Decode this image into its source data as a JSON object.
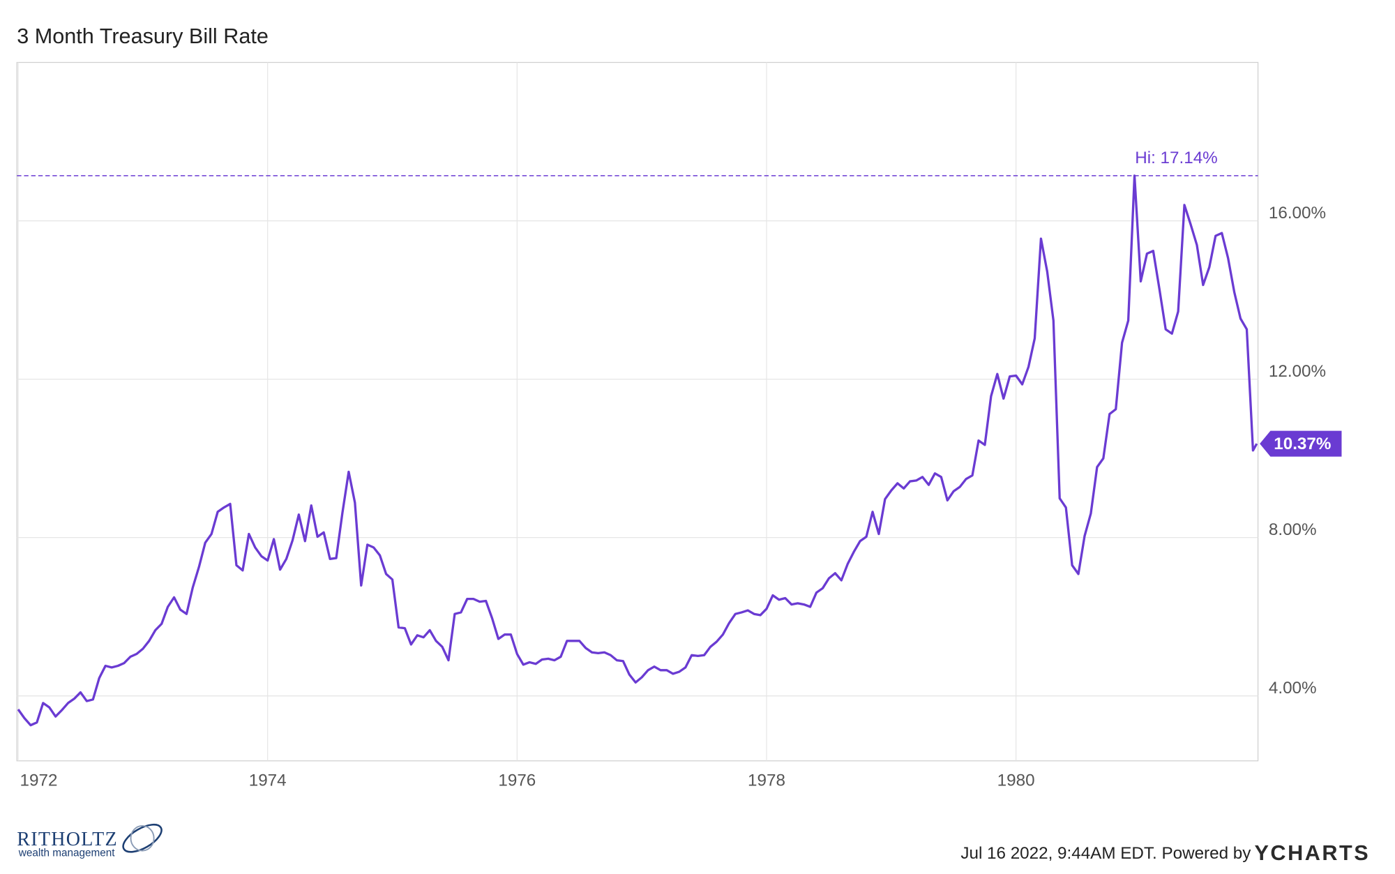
{
  "chart_data": {
    "type": "line",
    "title": "3 Month Treasury Bill Rate",
    "x": [
      1972,
      1972.05,
      1972.1,
      1972.15,
      1972.2,
      1972.25,
      1972.3,
      1972.35,
      1972.4,
      1972.45,
      1972.5,
      1972.55,
      1972.6,
      1972.65,
      1972.7,
      1972.75,
      1972.8,
      1972.85,
      1972.9,
      1972.95,
      1973,
      1973.05,
      1973.1,
      1973.15,
      1973.2,
      1973.25,
      1973.3,
      1973.35,
      1973.4,
      1973.45,
      1973.5,
      1973.55,
      1973.6,
      1973.65,
      1973.7,
      1973.75,
      1973.8,
      1973.85,
      1973.9,
      1973.95,
      1974,
      1974.05,
      1974.1,
      1974.15,
      1974.2,
      1974.25,
      1974.3,
      1974.35,
      1974.4,
      1974.45,
      1974.5,
      1974.55,
      1974.6,
      1974.65,
      1974.7,
      1974.75,
      1974.8,
      1974.85,
      1974.9,
      1974.95,
      1975,
      1975.05,
      1975.1,
      1975.15,
      1975.2,
      1975.25,
      1975.3,
      1975.35,
      1975.4,
      1975.45,
      1975.5,
      1975.55,
      1975.6,
      1975.65,
      1975.7,
      1975.75,
      1975.8,
      1975.85,
      1975.9,
      1975.95,
      1976,
      1976.05,
      1976.1,
      1976.15,
      1976.2,
      1976.25,
      1976.3,
      1976.35,
      1976.4,
      1976.45,
      1976.5,
      1976.55,
      1976.6,
      1976.65,
      1976.7,
      1976.75,
      1976.8,
      1976.85,
      1976.9,
      1976.95,
      1977,
      1977.05,
      1977.1,
      1977.15,
      1977.2,
      1977.25,
      1977.3,
      1977.35,
      1977.4,
      1977.45,
      1977.5,
      1977.55,
      1977.6,
      1977.65,
      1977.7,
      1977.75,
      1977.8,
      1977.85,
      1977.9,
      1977.95,
      1978,
      1978.05,
      1978.1,
      1978.15,
      1978.2,
      1978.25,
      1978.3,
      1978.35,
      1978.4,
      1978.45,
      1978.5,
      1978.55,
      1978.6,
      1978.65,
      1978.7,
      1978.75,
      1978.8,
      1978.85,
      1978.9,
      1978.95,
      1979,
      1979.05,
      1979.1,
      1979.15,
      1979.2,
      1979.25,
      1979.3,
      1979.35,
      1979.4,
      1979.45,
      1979.5,
      1979.55,
      1979.6,
      1979.65,
      1979.7,
      1979.75,
      1979.8,
      1979.85,
      1979.9,
      1979.95,
      1980,
      1980.05,
      1980.1,
      1980.15,
      1980.2,
      1980.25,
      1980.3,
      1980.35,
      1980.4,
      1980.45,
      1980.5,
      1980.55,
      1980.6,
      1980.65,
      1980.7,
      1980.75,
      1980.8,
      1980.85,
      1980.9,
      1980.95,
      1981,
      1981.05,
      1981.1,
      1981.15,
      1981.2,
      1981.25,
      1981.3,
      1981.35,
      1981.4,
      1981.45,
      1981.5,
      1981.55,
      1981.6,
      1981.65,
      1981.7,
      1981.75,
      1981.8,
      1981.85,
      1981.9,
      1981.93
    ],
    "series": [
      {
        "color": "#6a3bd2",
        "values": [
          3.66,
          3.44,
          3.26,
          3.33,
          3.82,
          3.71,
          3.48,
          3.64,
          3.82,
          3.93,
          4.09,
          3.87,
          3.91,
          4.45,
          4.76,
          4.72,
          4.76,
          4.83,
          4.99,
          5.06,
          5.19,
          5.39,
          5.66,
          5.82,
          6.25,
          6.49,
          6.18,
          6.07,
          6.74,
          7.26,
          7.87,
          8.09,
          8.65,
          8.76,
          8.85,
          7.3,
          7.17,
          8.09,
          7.75,
          7.53,
          7.42,
          7.96,
          7.19,
          7.46,
          7.93,
          8.58,
          7.91,
          8.81,
          8.02,
          8.13,
          7.46,
          7.48,
          8.63,
          9.66,
          8.88,
          6.79,
          7.82,
          7.75,
          7.55,
          7.08,
          6.94,
          5.73,
          5.71,
          5.3,
          5.53,
          5.48,
          5.66,
          5.39,
          5.24,
          4.9,
          6.07,
          6.11,
          6.45,
          6.45,
          6.38,
          6.4,
          5.96,
          5.44,
          5.55,
          5.55,
          5.06,
          4.79,
          4.85,
          4.81,
          4.92,
          4.94,
          4.9,
          4.99,
          5.39,
          5.39,
          5.39,
          5.21,
          5.1,
          5.08,
          5.1,
          5.03,
          4.9,
          4.88,
          4.54,
          4.34,
          4.47,
          4.65,
          4.74,
          4.65,
          4.65,
          4.56,
          4.61,
          4.72,
          5.03,
          5.01,
          5.03,
          5.24,
          5.37,
          5.55,
          5.84,
          6.07,
          6.11,
          6.16,
          6.07,
          6.04,
          6.2,
          6.54,
          6.43,
          6.47,
          6.31,
          6.34,
          6.31,
          6.25,
          6.61,
          6.72,
          6.97,
          7.1,
          6.92,
          7.33,
          7.64,
          7.91,
          8.02,
          8.65,
          8.09,
          8.97,
          9.19,
          9.37,
          9.24,
          9.42,
          9.44,
          9.53,
          9.33,
          9.62,
          9.53,
          8.94,
          9.17,
          9.28,
          9.48,
          9.57,
          10.45,
          10.34,
          11.57,
          12.13,
          11.51,
          12.07,
          12.09,
          11.87,
          12.31,
          13.03,
          15.55,
          14.72,
          13.48,
          8.99,
          8.76,
          7.3,
          7.08,
          8.04,
          8.61,
          9.78,
          10.0,
          11.12,
          11.24,
          12.92,
          13.48,
          17.14,
          14.47,
          15.17,
          15.24,
          14.27,
          13.26,
          13.15,
          13.71,
          16.4,
          15.91,
          15.39,
          14.38,
          14.83,
          15.62,
          15.69,
          15.06,
          14.2,
          13.53,
          13.26,
          10.2,
          10.37
        ]
      }
    ],
    "xlim": [
      1971.99,
      1981.94
    ],
    "xticks": [
      1972,
      1974,
      1976,
      1978,
      1980
    ],
    "ylim": [
      2.36,
      20
    ],
    "yticks": [
      {
        "value": 4,
        "label": "4.00%"
      },
      {
        "value": 8,
        "label": "8.00%"
      },
      {
        "value": 12,
        "label": "12.00%"
      },
      {
        "value": 16,
        "label": "16.00%"
      }
    ],
    "grid": true,
    "annotations": [
      {
        "label": "Hi: 17.14%",
        "value": 17.14
      },
      {
        "label": "10.37%",
        "value": 10.37
      }
    ]
  },
  "footer": {
    "brand": "RITHOLTZ",
    "brand_sub": "wealth management",
    "timestamp": "Jul 16 2022, 9:44AM EDT. Powered by",
    "provider": "YCHARTS"
  }
}
